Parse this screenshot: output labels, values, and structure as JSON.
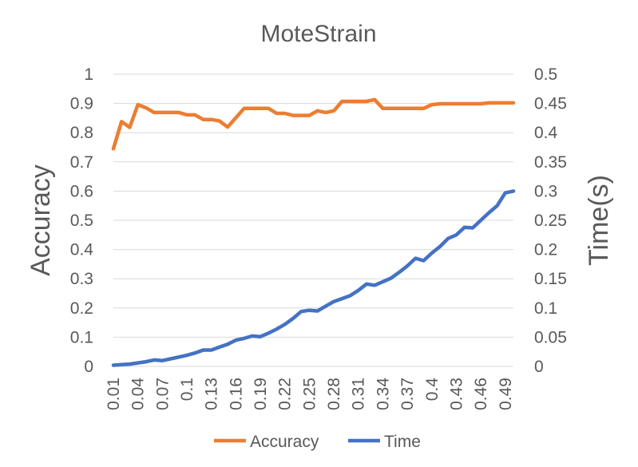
{
  "colors": {
    "accuracy": "#ED7D31",
    "time": "#4472C4",
    "text": "#595959",
    "grid": "#D9D9D9"
  },
  "chart_data": {
    "type": "line",
    "title": "MoteStrain",
    "xlabel": "",
    "ylabel": "Accuracy",
    "y2label": "Time(s)",
    "ylim": [
      0,
      1
    ],
    "y2lim": [
      0,
      0.5
    ],
    "yticks": [
      "0",
      "0.1",
      "0.2",
      "0.3",
      "0.4",
      "0.5",
      "0.6",
      "0.7",
      "0.8",
      "0.9",
      "1"
    ],
    "y2ticks": [
      "0",
      "0.05",
      "0.1",
      "0.15",
      "0.2",
      "0.25",
      "0.3",
      "0.35",
      "0.4",
      "0.45",
      "0.5"
    ],
    "x": [
      0.01,
      0.02,
      0.03,
      0.04,
      0.05,
      0.06,
      0.07,
      0.08,
      0.09,
      0.1,
      0.11,
      0.12,
      0.13,
      0.14,
      0.15,
      0.16,
      0.17,
      0.18,
      0.19,
      0.2,
      0.21,
      0.22,
      0.23,
      0.24,
      0.25,
      0.26,
      0.27,
      0.28,
      0.29,
      0.3,
      0.31,
      0.32,
      0.33,
      0.34,
      0.35,
      0.36,
      0.37,
      0.38,
      0.39,
      0.4,
      0.41,
      0.42,
      0.43,
      0.44,
      0.45,
      0.46,
      0.47,
      0.48,
      0.49,
      0.5
    ],
    "xtick_labels": [
      "0.01",
      "0.04",
      "0.07",
      "0.1",
      "0.13",
      "0.16",
      "0.19",
      "0.22",
      "0.25",
      "0.28",
      "0.31",
      "0.34",
      "0.37",
      "0.4",
      "0.43",
      "0.46",
      "0.49"
    ],
    "grid": true,
    "legend": "bottom",
    "series": [
      {
        "name": "Accuracy",
        "axis": "left",
        "color": "#ED7D31",
        "values": [
          0.745,
          0.838,
          0.818,
          0.896,
          0.885,
          0.869,
          0.869,
          0.869,
          0.869,
          0.861,
          0.861,
          0.845,
          0.845,
          0.84,
          0.819,
          0.851,
          0.883,
          0.883,
          0.883,
          0.883,
          0.866,
          0.866,
          0.859,
          0.859,
          0.859,
          0.875,
          0.869,
          0.875,
          0.907,
          0.907,
          0.907,
          0.907,
          0.913,
          0.883,
          0.883,
          0.883,
          0.883,
          0.883,
          0.883,
          0.896,
          0.899,
          0.899,
          0.899,
          0.899,
          0.899,
          0.899,
          0.902,
          0.902,
          0.902,
          0.902
        ]
      },
      {
        "name": "Time",
        "axis": "right",
        "color": "#4472C4",
        "values": [
          0.002,
          0.003,
          0.004,
          0.006,
          0.008,
          0.011,
          0.01,
          0.013,
          0.016,
          0.019,
          0.023,
          0.028,
          0.028,
          0.033,
          0.038,
          0.045,
          0.048,
          0.052,
          0.051,
          0.057,
          0.064,
          0.072,
          0.082,
          0.094,
          0.096,
          0.095,
          0.103,
          0.111,
          0.116,
          0.121,
          0.13,
          0.141,
          0.139,
          0.145,
          0.151,
          0.161,
          0.172,
          0.185,
          0.181,
          0.194,
          0.205,
          0.219,
          0.225,
          0.238,
          0.237,
          0.25,
          0.263,
          0.275,
          0.297,
          0.3
        ]
      }
    ]
  }
}
